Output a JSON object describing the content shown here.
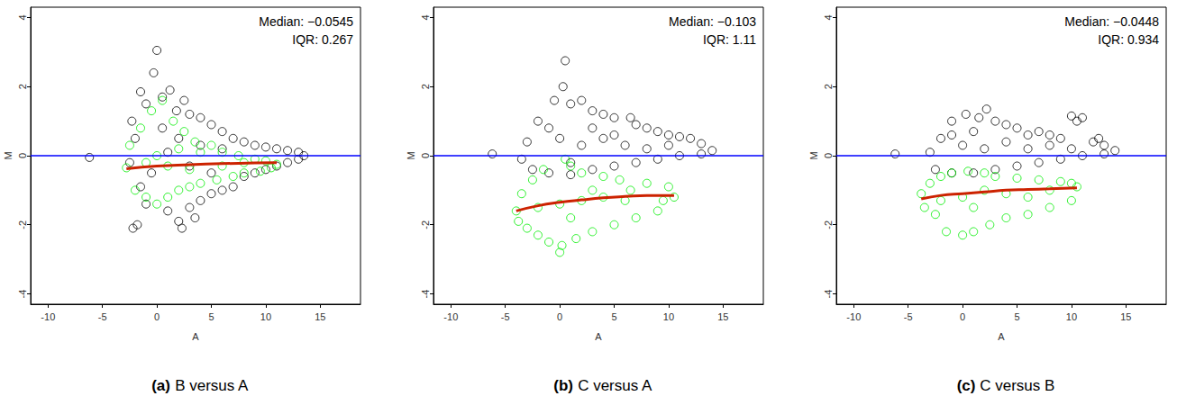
{
  "chart_data": [
    {
      "type": "scatter",
      "panel": "(a)",
      "title": "B versus A",
      "x_label": "A",
      "y_label": "M",
      "xlim": [
        -11.6,
        18.7
      ],
      "ylim": [
        -4.3,
        4.3
      ],
      "xticks": [
        -10,
        -5,
        0,
        5,
        10,
        15
      ],
      "yticks": [
        -4,
        -2,
        0,
        2,
        4
      ],
      "annotations": [
        "Median: −0.0545",
        "IQR: 0.267"
      ],
      "hline": {
        "y": 0,
        "color": "#0000ff"
      },
      "series": [
        {
          "type": "scatter",
          "marker": "open circle",
          "color": "#000000",
          "points": [
            [
              -6.2,
              -0.05
            ],
            [
              0,
              3.05
            ],
            [
              -0.3,
              2.4
            ],
            [
              -1.5,
              1.85
            ],
            [
              1.2,
              1.9
            ],
            [
              2.5,
              1.6
            ],
            [
              -2.3,
              1.0
            ],
            [
              -2.5,
              -0.2
            ],
            [
              -2.2,
              -2.1
            ],
            [
              -1.8,
              -2.0
            ],
            [
              2.3,
              -2.1
            ],
            [
              2.0,
              -1.9
            ],
            [
              3.5,
              -1.8
            ],
            [
              -1,
              1.5
            ],
            [
              0.5,
              1.7
            ],
            [
              1.8,
              1.3
            ],
            [
              3,
              1.2
            ],
            [
              4,
              1.1
            ],
            [
              5,
              0.9
            ],
            [
              6,
              0.7
            ],
            [
              7,
              0.5
            ],
            [
              8,
              0.4
            ],
            [
              9,
              0.3
            ],
            [
              10,
              0.25
            ],
            [
              11,
              0.2
            ],
            [
              12,
              0.15
            ],
            [
              13,
              0.1
            ],
            [
              13.5,
              0.0
            ],
            [
              13,
              -0.1
            ],
            [
              12,
              -0.2
            ],
            [
              11,
              -0.3
            ],
            [
              10,
              -0.4
            ],
            [
              9,
              -0.5
            ],
            [
              8,
              -0.6
            ],
            [
              7,
              -0.9
            ],
            [
              6,
              -1.0
            ],
            [
              5,
              -1.1
            ],
            [
              4,
              -1.3
            ],
            [
              3,
              -1.5
            ],
            [
              1,
              -1.6
            ],
            [
              -1,
              -1.4
            ],
            [
              -2,
              0.5
            ],
            [
              -1.5,
              -0.9
            ],
            [
              0.5,
              0.8
            ],
            [
              2,
              0.5
            ],
            [
              4,
              0.3
            ],
            [
              6,
              0.2
            ],
            [
              1,
              0.1
            ],
            [
              3,
              -0.3
            ],
            [
              -0.5,
              -0.5
            ],
            [
              5,
              -0.5
            ]
          ]
        },
        {
          "type": "scatter",
          "marker": "open circle",
          "color": "#00ee00",
          "points": [
            [
              -2.8,
              -0.35
            ],
            [
              -2.5,
              0.3
            ],
            [
              -2,
              -1.0
            ],
            [
              -1.5,
              0.8
            ],
            [
              -1,
              -1.2
            ],
            [
              -0.5,
              1.3
            ],
            [
              0,
              -1.4
            ],
            [
              0.5,
              1.6
            ],
            [
              1,
              -1.2
            ],
            [
              1.5,
              1.0
            ],
            [
              2,
              -1.0
            ],
            [
              2.5,
              0.7
            ],
            [
              3,
              -0.9
            ],
            [
              3.5,
              0.4
            ],
            [
              4,
              -0.8
            ],
            [
              5,
              0.3
            ],
            [
              5.5,
              -0.7
            ],
            [
              6,
              0.1
            ],
            [
              7,
              -0.6
            ],
            [
              7.5,
              0.0
            ],
            [
              8,
              -0.5
            ],
            [
              9,
              -0.1
            ],
            [
              9.5,
              -0.45
            ],
            [
              10,
              -0.15
            ],
            [
              10.5,
              -0.35
            ],
            [
              11,
              -0.25
            ],
            [
              0,
              0
            ],
            [
              1,
              -0.3
            ],
            [
              2,
              0.2
            ],
            [
              3,
              -0.4
            ],
            [
              4,
              0.1
            ],
            [
              -1,
              -0.2
            ],
            [
              6,
              -0.3
            ],
            [
              8,
              -0.2
            ]
          ]
        },
        {
          "type": "line",
          "line_style": "solid",
          "color": "#cc2200",
          "points": [
            [
              -2.8,
              -0.38
            ],
            [
              0,
              -0.3
            ],
            [
              3,
              -0.26
            ],
            [
              6,
              -0.23
            ],
            [
              9,
              -0.21
            ],
            [
              11,
              -0.2
            ]
          ]
        }
      ]
    },
    {
      "type": "scatter",
      "panel": "(b)",
      "title": "C versus A",
      "x_label": "A",
      "y_label": "M",
      "xlim": [
        -11.6,
        18.7
      ],
      "ylim": [
        -4.3,
        4.3
      ],
      "xticks": [
        -10,
        -5,
        0,
        5,
        10,
        15
      ],
      "yticks": [
        -4,
        -2,
        0,
        2,
        4
      ],
      "annotations": [
        "Median: −0.103",
        "IQR: 1.11"
      ],
      "hline": {
        "y": 0,
        "color": "#0000ff"
      },
      "series": [
        {
          "type": "scatter",
          "marker": "open circle",
          "color": "#000000",
          "points": [
            [
              -6.2,
              0.05
            ],
            [
              0.5,
              2.75
            ],
            [
              0.3,
              2.0
            ],
            [
              -0.5,
              1.6
            ],
            [
              1,
              1.5
            ],
            [
              2,
              1.6
            ],
            [
              3,
              1.3
            ],
            [
              4,
              1.2
            ],
            [
              5,
              1.1
            ],
            [
              6.5,
              1.1
            ],
            [
              -2,
              1.0
            ],
            [
              -3,
              0.4
            ],
            [
              -3.5,
              -0.1
            ],
            [
              -2.5,
              -0.4
            ],
            [
              -1,
              -0.5
            ],
            [
              1,
              -0.55
            ],
            [
              3,
              -0.4
            ],
            [
              5,
              -0.3
            ],
            [
              7,
              -0.2
            ],
            [
              9,
              -0.1
            ],
            [
              11,
              0.0
            ],
            [
              13,
              0.05
            ],
            [
              14,
              0.15
            ],
            [
              13,
              0.35
            ],
            [
              12,
              0.5
            ],
            [
              11,
              0.55
            ],
            [
              10,
              0.6
            ],
            [
              9,
              0.7
            ],
            [
              8,
              0.8
            ],
            [
              7,
              0.9
            ],
            [
              2,
              0.3
            ],
            [
              0,
              0.5
            ],
            [
              4,
              0.5
            ],
            [
              6,
              0.3
            ],
            [
              8,
              0.2
            ],
            [
              10,
              0.3
            ],
            [
              -1,
              0.8
            ],
            [
              1,
              -0.2
            ],
            [
              3,
              0.8
            ],
            [
              5,
              0.6
            ]
          ]
        },
        {
          "type": "scatter",
          "marker": "open circle",
          "color": "#00ee00",
          "points": [
            [
              -4,
              -1.6
            ],
            [
              -3.8,
              -1.9
            ],
            [
              -3.5,
              -1.1
            ],
            [
              -3,
              -2.1
            ],
            [
              -2.5,
              -0.7
            ],
            [
              -2,
              -2.3
            ],
            [
              -1.5,
              -0.4
            ],
            [
              -1,
              -2.5
            ],
            [
              0,
              -2.8
            ],
            [
              0.5,
              -0.1
            ],
            [
              0.2,
              -2.6
            ],
            [
              1,
              -0.3
            ],
            [
              1.5,
              -2.4
            ],
            [
              2,
              -0.5
            ],
            [
              3,
              -2.2
            ],
            [
              4,
              -0.6
            ],
            [
              5,
              -2.0
            ],
            [
              5.5,
              -0.7
            ],
            [
              7,
              -1.8
            ],
            [
              8,
              -0.8
            ],
            [
              9,
              -1.6
            ],
            [
              10,
              -0.9
            ],
            [
              10.5,
              -1.2
            ],
            [
              9.5,
              -1.3
            ],
            [
              0,
              -1.4
            ],
            [
              2,
              -1.3
            ],
            [
              4,
              -1.2
            ],
            [
              6,
              -1.3
            ],
            [
              -2,
              -1.5
            ],
            [
              3,
              -1.0
            ],
            [
              6.5,
              -1.0
            ],
            [
              1,
              -1.8
            ]
          ]
        },
        {
          "type": "line",
          "line_style": "solid",
          "color": "#cc2200",
          "points": [
            [
              -4,
              -1.6
            ],
            [
              -2,
              -1.45
            ],
            [
              0,
              -1.35
            ],
            [
              2,
              -1.28
            ],
            [
              4,
              -1.22
            ],
            [
              6,
              -1.18
            ],
            [
              8,
              -1.15
            ],
            [
              10.5,
              -1.15
            ]
          ]
        }
      ]
    },
    {
      "type": "scatter",
      "panel": "(c)",
      "title": "C versus B",
      "x_label": "A",
      "y_label": "M",
      "xlim": [
        -11.6,
        18.7
      ],
      "ylim": [
        -4.3,
        4.3
      ],
      "xticks": [
        -10,
        -5,
        0,
        5,
        10,
        15
      ],
      "yticks": [
        -4,
        -2,
        0,
        2,
        4
      ],
      "annotations": [
        "Median: −0.0448",
        "IQR: 0.934"
      ],
      "hline": {
        "y": 0,
        "color": "#0000ff"
      },
      "series": [
        {
          "type": "scatter",
          "marker": "open circle",
          "color": "#000000",
          "points": [
            [
              -6.2,
              0.05
            ],
            [
              2.2,
              1.35
            ],
            [
              0.3,
              1.2
            ],
            [
              -1,
              1.0
            ],
            [
              1.5,
              1.1
            ],
            [
              3,
              1.0
            ],
            [
              4,
              0.9
            ],
            [
              5,
              0.8
            ],
            [
              10,
              1.15
            ],
            [
              10.5,
              1.0
            ],
            [
              11,
              1.1
            ],
            [
              -2,
              0.5
            ],
            [
              -3,
              0.1
            ],
            [
              -2.5,
              -0.4
            ],
            [
              -1,
              -0.5
            ],
            [
              1,
              -0.5
            ],
            [
              3,
              -0.4
            ],
            [
              5,
              -0.3
            ],
            [
              7,
              -0.2
            ],
            [
              9,
              -0.1
            ],
            [
              11,
              0.0
            ],
            [
              13,
              0.05
            ],
            [
              14,
              0.15
            ],
            [
              13,
              0.3
            ],
            [
              12,
              0.4
            ],
            [
              12.5,
              0.5
            ],
            [
              8,
              0.6
            ],
            [
              9,
              0.5
            ],
            [
              7,
              0.7
            ],
            [
              6,
              0.6
            ],
            [
              0,
              0.3
            ],
            [
              2,
              0.2
            ],
            [
              4,
              0.4
            ],
            [
              6,
              0.2
            ],
            [
              8,
              0.3
            ],
            [
              10,
              0.2
            ],
            [
              -1,
              0.6
            ],
            [
              1,
              0.7
            ]
          ]
        },
        {
          "type": "scatter",
          "marker": "open circle",
          "color": "#00ee00",
          "points": [
            [
              -3.8,
              -1.1
            ],
            [
              -3.5,
              -1.5
            ],
            [
              -3,
              -0.8
            ],
            [
              -2.5,
              -1.7
            ],
            [
              -2,
              -0.6
            ],
            [
              -1.5,
              -2.2
            ],
            [
              -1,
              -0.5
            ],
            [
              0,
              -2.3
            ],
            [
              0.5,
              -0.45
            ],
            [
              1,
              -2.2
            ],
            [
              2,
              -0.5
            ],
            [
              2.5,
              -2.0
            ],
            [
              3,
              -0.6
            ],
            [
              4,
              -1.8
            ],
            [
              5,
              -0.65
            ],
            [
              6,
              -1.7
            ],
            [
              7,
              -0.7
            ],
            [
              8,
              -1.5
            ],
            [
              9,
              -0.75
            ],
            [
              10,
              -1.3
            ],
            [
              10.5,
              -0.9
            ],
            [
              10,
              -0.8
            ],
            [
              0,
              -1.2
            ],
            [
              2,
              -1.0
            ],
            [
              4,
              -1.1
            ],
            [
              6,
              -1.2
            ],
            [
              -2,
              -1.3
            ],
            [
              8,
              -1.0
            ],
            [
              1,
              -1.5
            ]
          ]
        },
        {
          "type": "line",
          "line_style": "solid",
          "color": "#cc2200",
          "points": [
            [
              -3.8,
              -1.25
            ],
            [
              -2,
              -1.15
            ],
            [
              0,
              -1.1
            ],
            [
              2,
              -1.05
            ],
            [
              4,
              -1.0
            ],
            [
              6,
              -0.98
            ],
            [
              8,
              -0.96
            ],
            [
              10.5,
              -0.93
            ]
          ]
        }
      ]
    }
  ]
}
